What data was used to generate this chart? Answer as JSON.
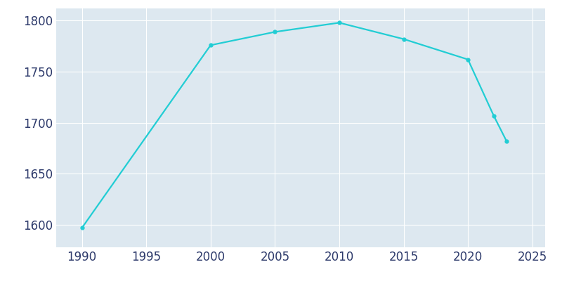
{
  "years": [
    1990,
    2000,
    2005,
    2010,
    2015,
    2020,
    2022,
    2023
  ],
  "population": [
    1597,
    1776,
    1789,
    1798,
    1782,
    1762,
    1707,
    1682
  ],
  "line_color": "#22cdd4",
  "figure_background_color": "#ffffff",
  "axes_background_color": "#dde8f0",
  "grid_color": "#ffffff",
  "tick_color": "#2d3a6b",
  "xlim": [
    1988,
    2026
  ],
  "ylim": [
    1578,
    1812
  ],
  "xticks": [
    1990,
    1995,
    2000,
    2005,
    2010,
    2015,
    2020,
    2025
  ],
  "yticks": [
    1600,
    1650,
    1700,
    1750,
    1800
  ],
  "line_width": 1.6,
  "marker": "o",
  "marker_size": 3.5,
  "tick_labelsize": 12
}
